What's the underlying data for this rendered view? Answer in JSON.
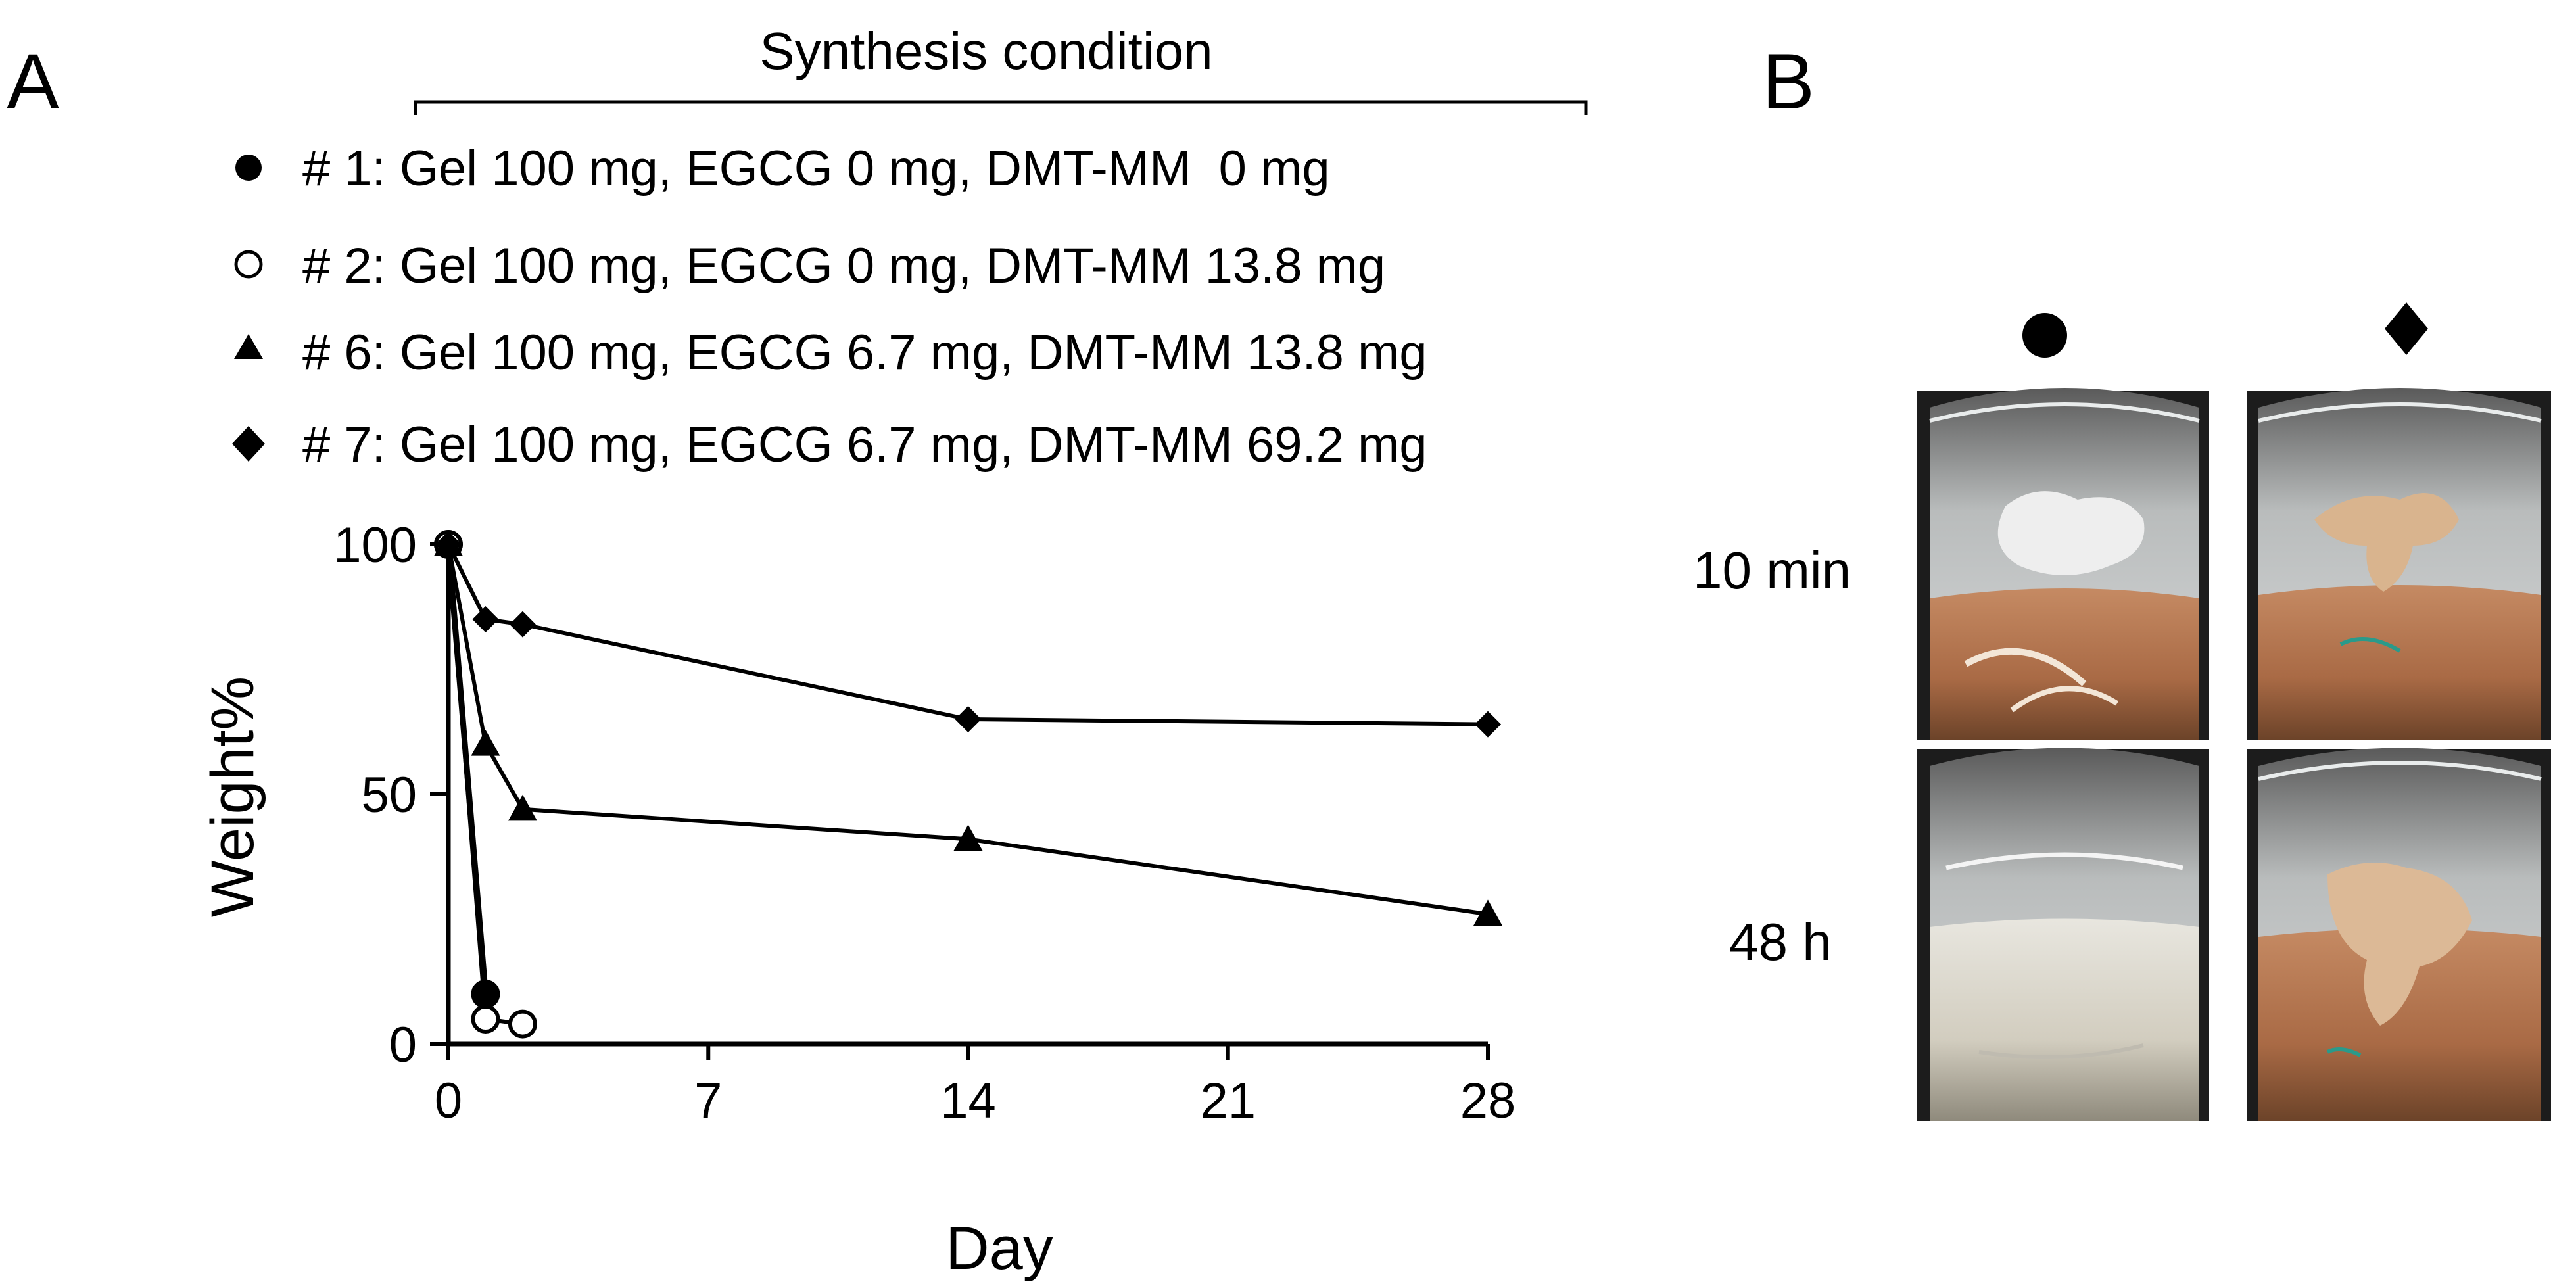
{
  "panel_labels": {
    "a": "A",
    "b": "B"
  },
  "legend": {
    "header": "Synthesis condition",
    "entries": [
      {
        "marker": "filled-circle",
        "text": "# 1: Gel 100 mg, EGCG 0 mg, DMT-MM  0 mg"
      },
      {
        "marker": "open-circle",
        "text": "# 2: Gel 100 mg, EGCG 0 mg, DMT-MM 13.8 mg"
      },
      {
        "marker": "filled-triangle",
        "text": "# 6: Gel 100 mg, EGCG 6.7 mg, DMT-MM 13.8 mg"
      },
      {
        "marker": "filled-diamond",
        "text": "# 7: Gel 100 mg, EGCG 6.7 mg, DMT-MM 69.2 mg"
      }
    ]
  },
  "chart_data": {
    "type": "line",
    "title": "",
    "xlabel": "Day",
    "ylabel": "Weight%",
    "xlim": [
      0,
      28
    ],
    "ylim": [
      0,
      100
    ],
    "xticks": [
      0,
      7,
      14,
      21,
      28
    ],
    "yticks": [
      0,
      50,
      100
    ],
    "grid": false,
    "series": [
      {
        "name": "# 1",
        "marker": "filled-circle",
        "x": [
          0,
          1
        ],
        "y": [
          100,
          10
        ]
      },
      {
        "name": "# 2",
        "marker": "open-circle",
        "x": [
          0,
          1,
          2
        ],
        "y": [
          100,
          5,
          4
        ]
      },
      {
        "name": "# 6",
        "marker": "filled-triangle",
        "x": [
          0,
          1,
          2,
          14,
          28
        ],
        "y": [
          100,
          60,
          47,
          41,
          26
        ]
      },
      {
        "name": "# 7",
        "marker": "filled-diamond",
        "x": [
          0,
          1,
          2,
          14,
          28
        ],
        "y": [
          100,
          85,
          84,
          65,
          64
        ]
      }
    ]
  },
  "panel_b": {
    "column_markers": [
      "filled-circle",
      "filled-diamond"
    ],
    "row_labels": [
      "10 min",
      "48 h"
    ]
  },
  "colors": {
    "ink": "#000000",
    "background": "#ffffff"
  }
}
